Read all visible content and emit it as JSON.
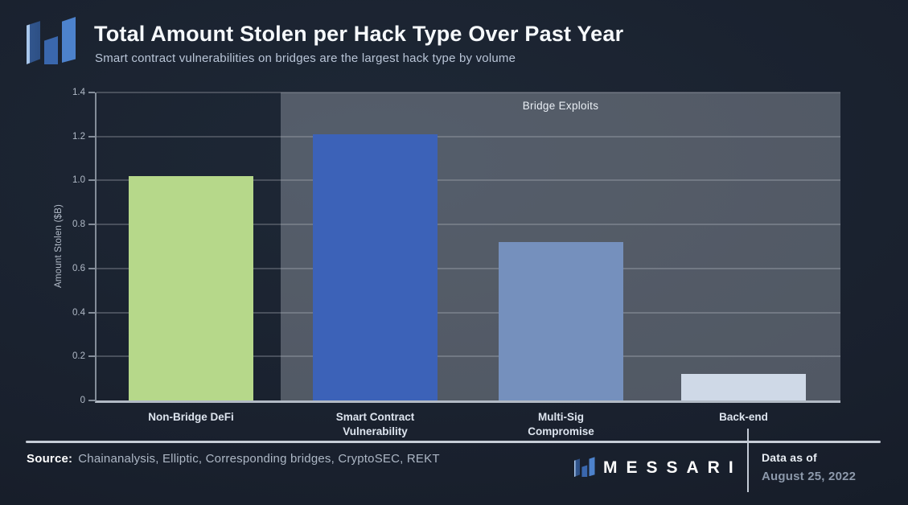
{
  "header": {
    "title": "Total Amount Stolen per Hack Type Over Past Year",
    "subtitle": "Smart contract vulnerabilities on bridges are the largest hack type by volume"
  },
  "icons": {
    "messari_logo": "three slanted blue bars forming an M mark"
  },
  "colors": {
    "background": "#19202d",
    "gridline": "#49505c",
    "axis_spine": "#b2bac5",
    "region_fill": "rgba(201,209,218,0.32)",
    "bar_green": "#b6d88a",
    "bar_blue": "#3c62b8",
    "bar_slate": "#7590bd",
    "bar_light": "#cfd9e7"
  },
  "chart_data": {
    "type": "bar",
    "title": "Total Amount Stolen per Hack Type Over Past Year",
    "xlabel": "",
    "ylabel": "Amount Stolen ($B)",
    "ylim": [
      0,
      1.4
    ],
    "grid": "horizontal",
    "legend": "none",
    "yticks": [
      {
        "value": 0,
        "label": "0"
      },
      {
        "value": 0.2,
        "label": "0.2"
      },
      {
        "value": 0.4,
        "label": "0.4"
      },
      {
        "value": 0.6,
        "label": "0.6"
      },
      {
        "value": 0.8,
        "label": "0.8"
      },
      {
        "value": 1.0,
        "label": "1.0"
      },
      {
        "value": 1.2,
        "label": "1.2"
      },
      {
        "value": 1.4,
        "label": "1.4"
      }
    ],
    "categories": [
      "Non-Bridge DeFi",
      "Smart Contract Vulnerability",
      "Multi-Sig Compromise",
      "Back-end"
    ],
    "bars": [
      {
        "category": "Non-Bridge DeFi",
        "label_lines": [
          "Non-Bridge DeFi"
        ],
        "value": 1.02,
        "color": "#b6d88a"
      },
      {
        "category": "Smart Contract Vulnerability",
        "label_lines": [
          "Smart Contract",
          "Vulnerability"
        ],
        "value": 1.21,
        "color": "#3c62b8"
      },
      {
        "category": "Multi-Sig Compromise",
        "label_lines": [
          "Multi-Sig",
          "Compromise"
        ],
        "value": 0.72,
        "color": "#7590bd"
      },
      {
        "category": "Back-end",
        "label_lines": [
          "Back-end"
        ],
        "value": 0.12,
        "color": "#cfd9e7"
      }
    ],
    "annotation_region": {
      "label": "Bridge Exploits",
      "covers": [
        "Smart Contract Vulnerability",
        "Multi-Sig Compromise",
        "Back-end"
      ],
      "fill": "rgba(201,209,218,0.32)",
      "label_position": "top-center"
    }
  },
  "footer": {
    "source_label": "Source:",
    "source_text": "Chainanalysis, Elliptic, Corresponding bridges, CryptoSEC, REKT",
    "brand": "MESSARI",
    "data_as_of_label": "Data as of",
    "data_as_of_date": "August 25, 2022"
  }
}
